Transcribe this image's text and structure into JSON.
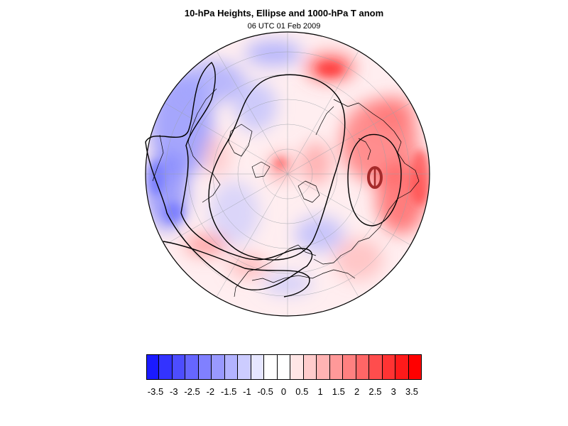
{
  "header": {
    "title": "10-hPa Heights, Ellipse and 1000-hPa T anom",
    "subtitle": "06 UTC 01 Feb 2009"
  },
  "colorbar": {
    "labels": [
      "-3.5",
      "-3",
      "-2.5",
      "-2",
      "-1.5",
      "-1",
      "-0.5",
      "0",
      "0.5",
      "1",
      "1.5",
      "2",
      "2.5",
      "3",
      "3.5"
    ],
    "colors": [
      "#1a1aff",
      "#3333ff",
      "#4d4dff",
      "#6666ff",
      "#8080ff",
      "#9999ff",
      "#b3b3ff",
      "#ccccff",
      "#e6e6ff",
      "#ffffff",
      "#ffffff",
      "#ffe6e6",
      "#ffcccc",
      "#ffb3b3",
      "#ff9999",
      "#ff8080",
      "#ff6666",
      "#ff4d4d",
      "#ff3333",
      "#ff1a1a",
      "#ff0000"
    ],
    "min": -3.5,
    "max": 3.5
  }
}
